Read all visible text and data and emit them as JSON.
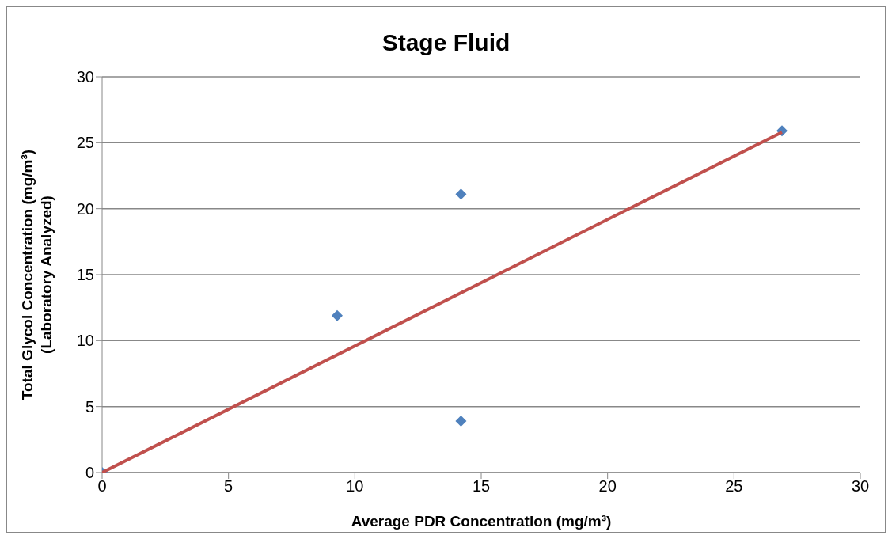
{
  "chart_data": {
    "type": "scatter",
    "title": "Stage Fluid",
    "xlabel": "Average PDR Concentration (mg/m³)",
    "ylabel": "Total Glycol Concentration (mg/m³)\n(Laboratory Analyzed)",
    "xlim": [
      0,
      30
    ],
    "xticks": [
      0,
      5,
      10,
      15,
      20,
      25,
      30
    ],
    "ylim": [
      0,
      30
    ],
    "yticks": [
      0,
      5,
      10,
      15,
      20,
      25,
      30
    ],
    "grid": "y",
    "legend": false,
    "marker": "diamond",
    "series": [
      {
        "color": "#4f81bd",
        "x": [
          0,
          9.3,
          14.2,
          14.2,
          26.9
        ],
        "values": [
          0,
          11.9,
          21.1,
          3.9,
          25.9
        ]
      },
      {
        "type": "line",
        "color": "#c0504d",
        "x": [
          0,
          26.9
        ],
        "values": [
          0,
          25.8
        ],
        "marker": "none",
        "line_style": "solid"
      }
    ]
  }
}
